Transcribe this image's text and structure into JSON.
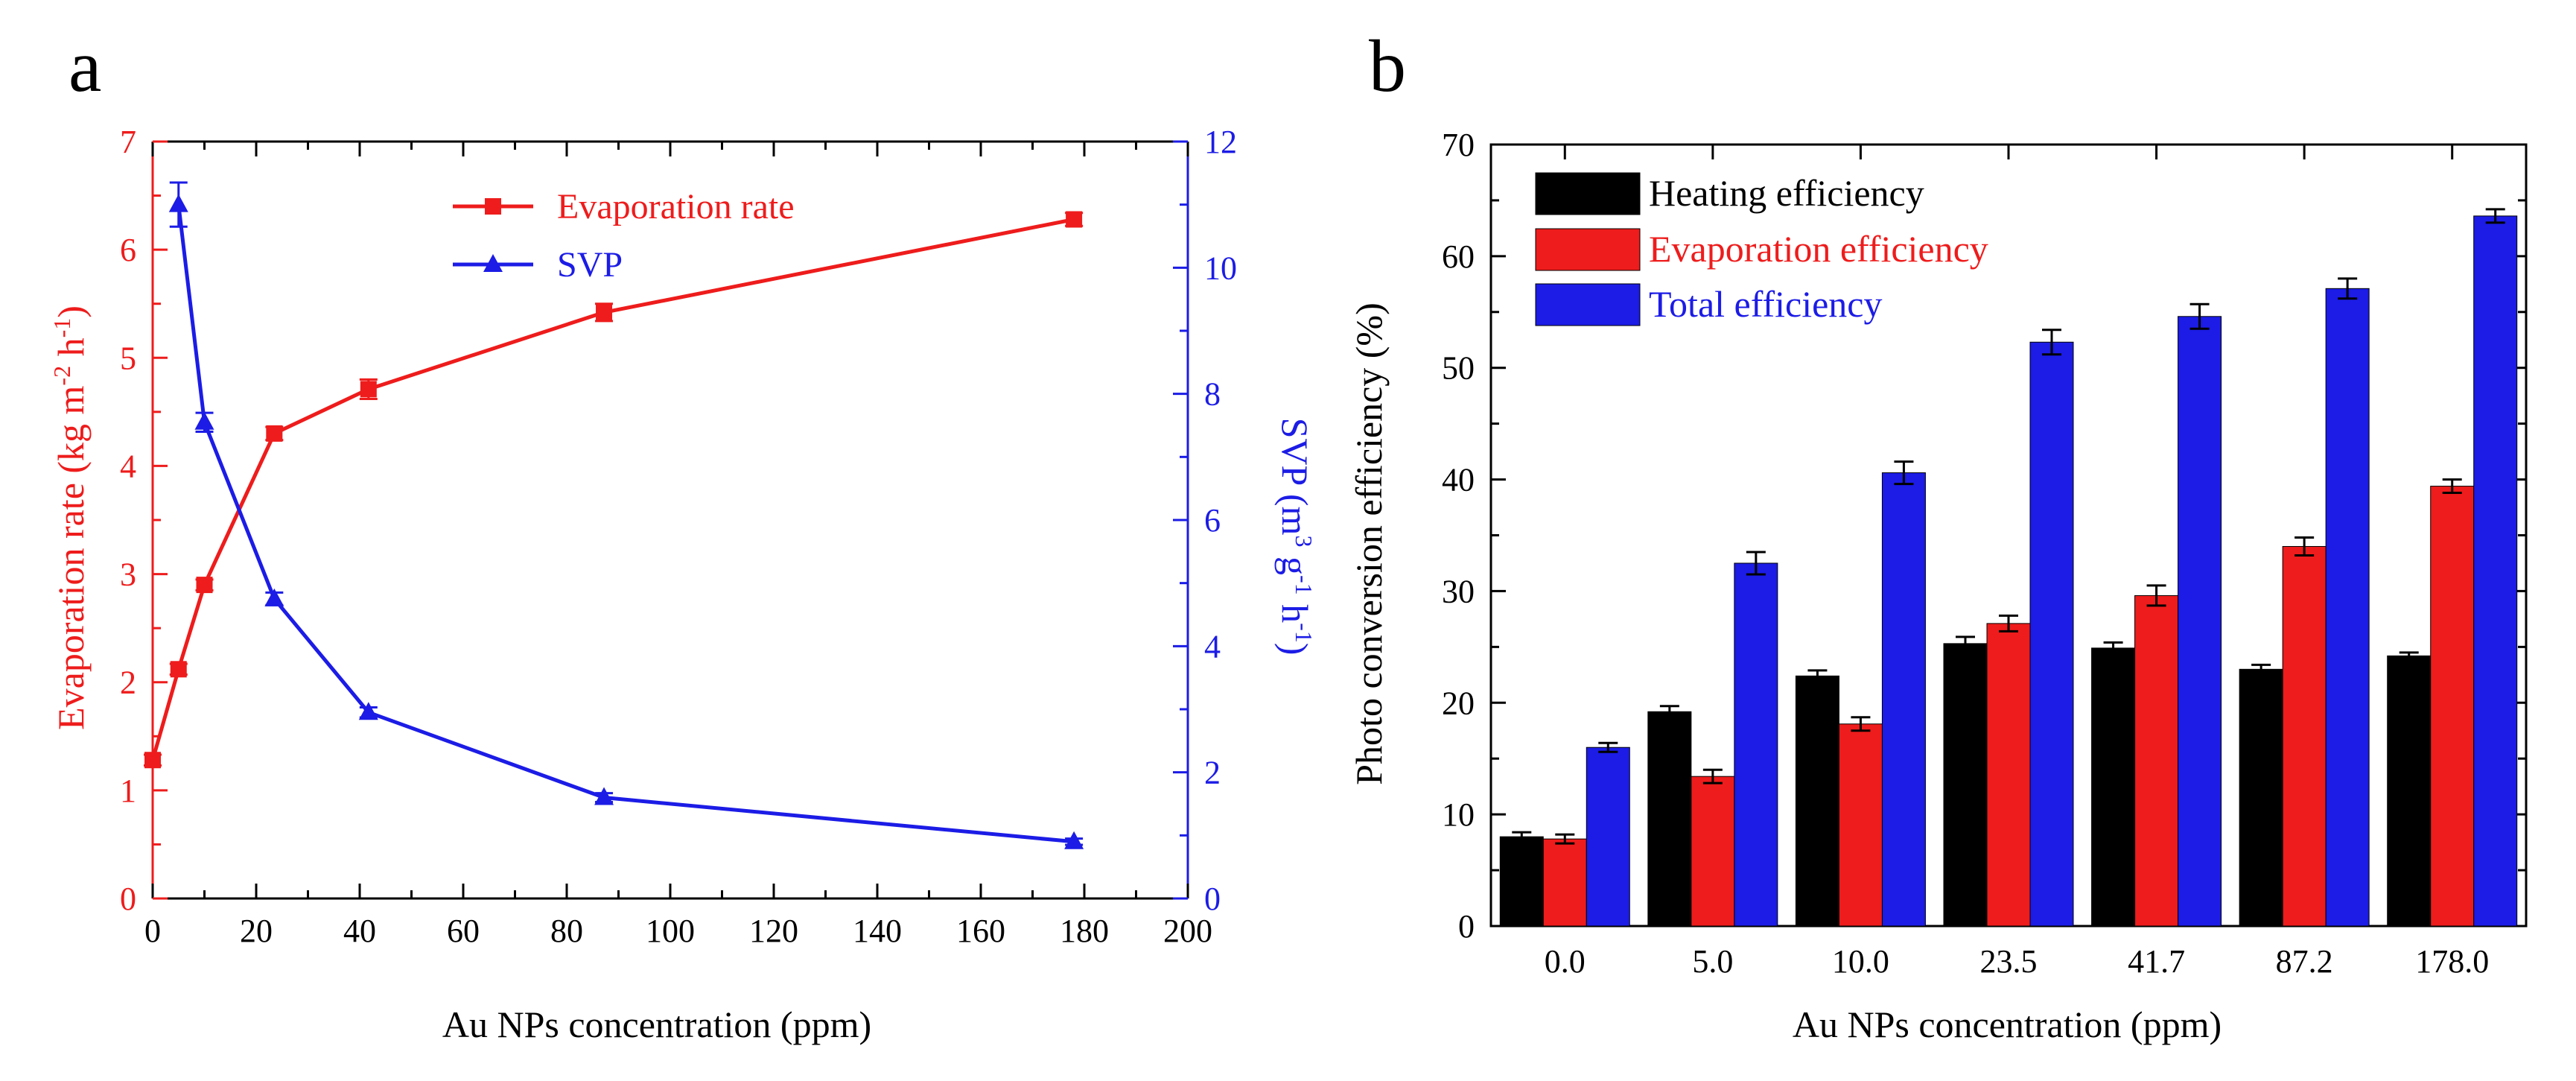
{
  "panels": {
    "a_label": "a",
    "b_label": "b"
  },
  "colors": {
    "red": "#ee1c1c",
    "blue": "#1c1ce6",
    "black": "#000000",
    "errorbar": "#000000"
  },
  "chart_data": [
    {
      "id": "a",
      "type": "line",
      "xlabel": "Au NPs concentration (ppm)",
      "ylabel_left": {
        "main": "Evaporation rate (kg m",
        "sup1": "-2",
        "mid": " h",
        "sup2": "-1",
        "end": ")"
      },
      "ylabel_right": {
        "main": "SVP (m",
        "sup1": "3",
        "mid1": " g",
        "sup2": "-1",
        "mid2": " h",
        "sup3": "-1",
        "end": ")"
      },
      "xlim": [
        0,
        200
      ],
      "xticks": [
        0,
        20,
        40,
        60,
        80,
        100,
        120,
        140,
        160,
        180,
        200
      ],
      "ylim_left": [
        0,
        7
      ],
      "yticks_left": [
        0,
        1,
        2,
        3,
        4,
        5,
        6,
        7
      ],
      "ylim_right": [
        0,
        12
      ],
      "yticks_right": [
        0,
        2,
        4,
        6,
        8,
        10,
        12
      ],
      "legend_position": "top-right",
      "series": [
        {
          "name": "Evaporation rate",
          "axis": "left",
          "marker": "square",
          "color": "#ee1c1c",
          "x": [
            0,
            5,
            10,
            23.5,
            41.7,
            87.2,
            178
          ],
          "y": [
            1.28,
            2.12,
            2.9,
            4.3,
            4.71,
            5.42,
            6.28
          ],
          "err": [
            0.05,
            0.05,
            0.05,
            0.06,
            0.09,
            0.08,
            0.06
          ]
        },
        {
          "name": "SVP",
          "axis": "right",
          "marker": "triangle",
          "color": "#1c1ce6",
          "x": [
            5,
            10,
            23.5,
            41.7,
            87.2,
            178
          ],
          "y": [
            11.0,
            7.55,
            4.75,
            2.95,
            1.6,
            0.9
          ],
          "err": [
            0.35,
            0.15,
            0.1,
            0.08,
            0.07,
            0.05
          ]
        }
      ]
    },
    {
      "id": "b",
      "type": "bar",
      "xlabel": "Au NPs concentration (ppm)",
      "ylabel": "Photo conversion efficiency (%)",
      "ylim": [
        0,
        70
      ],
      "yticks": [
        0,
        10,
        20,
        30,
        40,
        50,
        60,
        70
      ],
      "legend_position": "top-left",
      "categories": [
        "0.0",
        "5.0",
        "10.0",
        "23.5",
        "41.7",
        "87.2",
        "178.0"
      ],
      "series": [
        {
          "name": "Heating efficiency",
          "color": "#000000",
          "values": [
            8.0,
            19.2,
            22.4,
            25.3,
            24.9,
            23.0,
            24.2
          ],
          "err": [
            0.4,
            0.5,
            0.5,
            0.6,
            0.5,
            0.4,
            0.3
          ]
        },
        {
          "name": "Evaporation efficiency",
          "color": "#ee1c1c",
          "values": [
            7.8,
            13.4,
            18.1,
            27.1,
            29.6,
            34.0,
            39.4
          ],
          "err": [
            0.4,
            0.6,
            0.6,
            0.7,
            0.9,
            0.8,
            0.6
          ]
        },
        {
          "name": "Total efficiency",
          "color": "#1c1ce6",
          "values": [
            16.0,
            32.5,
            40.6,
            52.3,
            54.6,
            57.1,
            63.6
          ],
          "err": [
            0.4,
            1.0,
            1.0,
            1.1,
            1.1,
            0.9,
            0.6
          ]
        }
      ]
    }
  ]
}
